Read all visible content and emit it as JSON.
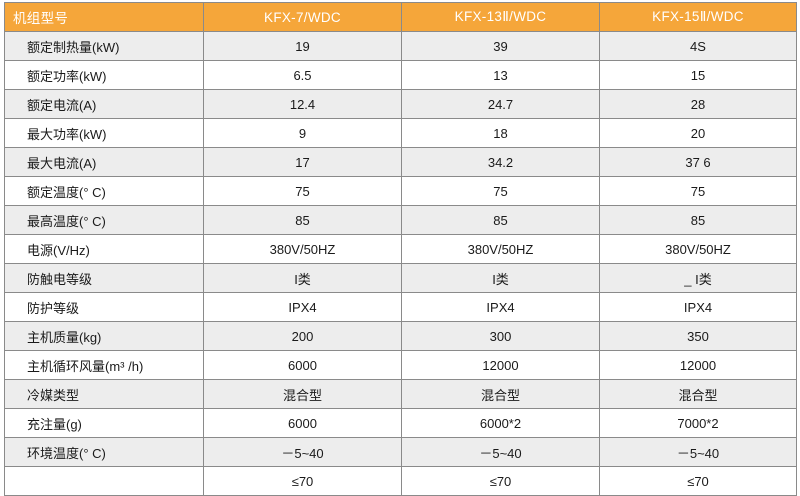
{
  "table": {
    "header": {
      "param": "机组型号",
      "models": [
        "KFX-7/WDC",
        "KFX-13Ⅱ/WDC",
        "KFX-15Ⅱ/WDC"
      ]
    },
    "rows": [
      {
        "label": "额定制热量(kW)",
        "values": [
          "19",
          "39",
          "4S"
        ]
      },
      {
        "label": "额定功率(kW)",
        "values": [
          "6.5",
          "13",
          "15"
        ]
      },
      {
        "label": "额定电流(A)",
        "values": [
          "12.4",
          "24.7",
          "28"
        ]
      },
      {
        "label": "最大功率(kW)",
        "values": [
          "9",
          "18",
          "20"
        ]
      },
      {
        "label": "最大电流(A)",
        "values": [
          "17",
          "34.2",
          "37 6"
        ]
      },
      {
        "label": "额定温度(° C)",
        "values": [
          "75",
          "75",
          "75"
        ]
      },
      {
        "label": "最高温度(° C)",
        "values": [
          "85",
          "85",
          "85"
        ]
      },
      {
        "label": "电源(V/Hz)",
        "values": [
          "380V/50HZ",
          "380V/50HZ",
          "380V/50HZ"
        ]
      },
      {
        "label": "防触电等级",
        "values": [
          "I类",
          "I类",
          "_ I类"
        ]
      },
      {
        "label": "防护等级",
        "values": [
          "IPX4",
          "IPX4",
          "IPX4"
        ]
      },
      {
        "label": "主机质量(kg)",
        "values": [
          "200",
          "300",
          "350"
        ]
      },
      {
        "label": "主机循环风量(m³ /h)",
        "values": [
          "6000",
          "12000",
          "12000"
        ]
      },
      {
        "label": "冷媒类型",
        "values": [
          "混合型",
          "混合型",
          "混合型"
        ]
      },
      {
        "label": "充注量(g)",
        "values": [
          "6000",
          "6000*2",
          "7000*2"
        ]
      },
      {
        "label": "环境温度(° C)",
        "values": [
          "－5~40",
          "－5~40",
          "－5~40"
        ]
      },
      {
        "label": "",
        "values": [
          "≤70",
          "≤70",
          "≤70"
        ]
      }
    ]
  }
}
